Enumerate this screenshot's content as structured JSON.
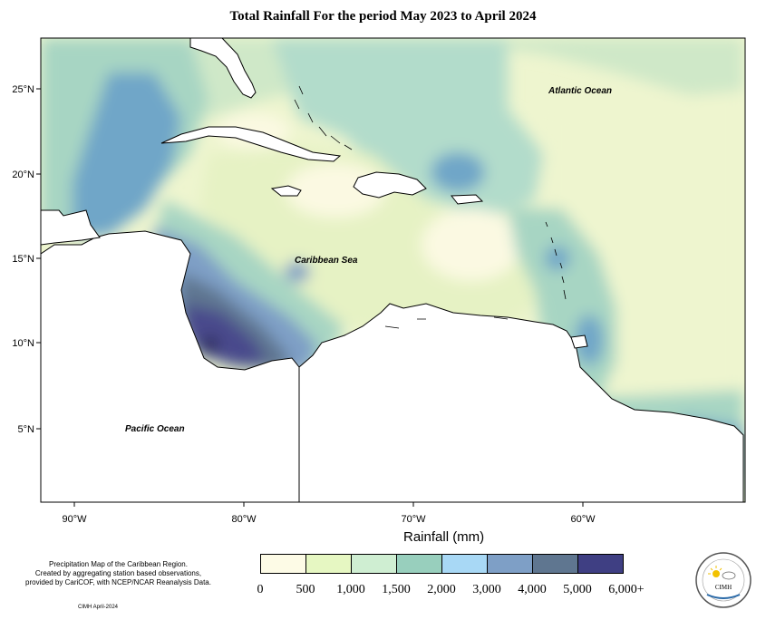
{
  "title": "Total Rainfall For the period May 2023 to April 2024",
  "labels": {
    "atlantic": "Atlantic Ocean",
    "caribbean": "Caribbean Sea",
    "pacific": "Pacific Ocean"
  },
  "lat_ticks": [
    "25°N",
    "20°N",
    "15°N",
    "10°N",
    "5°N"
  ],
  "lon_ticks": [
    "90°W",
    "80°W",
    "70°W",
    "60°W"
  ],
  "legend": {
    "title": "Rainfall (mm)",
    "bins": [
      {
        "label": "0",
        "color": "#fdfbe6"
      },
      {
        "label": "500",
        "color": "#e6f7c2"
      },
      {
        "label": "1,000",
        "color": "#cfeed2"
      },
      {
        "label": "1,500",
        "color": "#98cfbd"
      },
      {
        "label": "2,000",
        "color": "#a8d8f5"
      },
      {
        "label": "3,000",
        "color": "#7e9fc6"
      },
      {
        "label": "4,000",
        "color": "#5f7690"
      },
      {
        "label": "5,000",
        "color": "#3f3f83"
      }
    ],
    "last_label": "6,000+"
  },
  "description": "Precipitation Map of the Caribbean Region.\nCreated by aggregating station based observations,\nprovided by CariCOF, with NCEP/NCAR Reanalysis Data.",
  "credit": "CIMH April-2024",
  "logo_text": "CIMH",
  "colors": {
    "land": "#ffffff",
    "coast": "#000000"
  }
}
